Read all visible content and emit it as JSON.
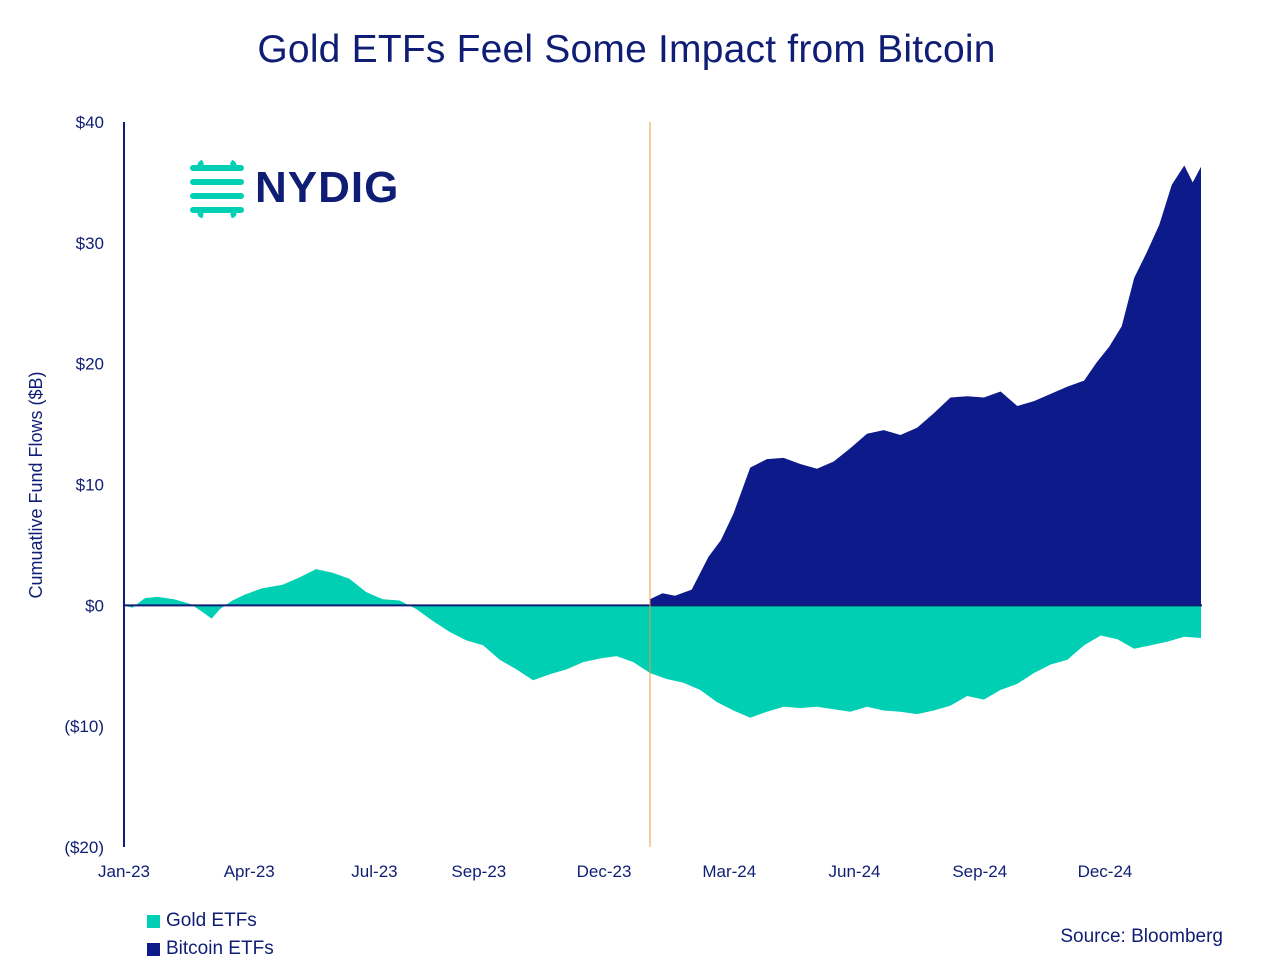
{
  "chart_data": {
    "type": "area",
    "title": "Gold ETFs Feel Some Impact from Bitcoin",
    "ylabel": "Cumuatlive Fund Flows ($B)",
    "xlabel": "",
    "ylim": [
      -20,
      40
    ],
    "y_ticks": [
      "$40",
      "$30",
      "$20",
      "$10",
      "$0",
      "($10)",
      "($20)"
    ],
    "y_tick_values": [
      40,
      30,
      20,
      10,
      0,
      -10,
      -20
    ],
    "x_ticks": [
      "Jan-23",
      "Apr-23",
      "Jul-23",
      "Sep-23",
      "Dec-23",
      "Mar-24",
      "Jun-24",
      "Sep-24",
      "Dec-24"
    ],
    "x_tick_months": [
      0,
      3,
      6,
      8.5,
      11.5,
      14.5,
      17.5,
      20.5,
      23.5
    ],
    "x_range_months": [
      0,
      25.8
    ],
    "bitcoin_launch_month": 12.6,
    "legend_placement": "bottom-left",
    "source": "Source: Bloomberg",
    "logo_text": "NYDIG",
    "series": [
      {
        "name": "Gold ETFs",
        "color": "#00cfb4",
        "x_months": [
          0,
          0.2,
          0.5,
          0.8,
          1.2,
          1.6,
          1.9,
          2.1,
          2.3,
          2.6,
          2.9,
          3.3,
          3.8,
          4.2,
          4.6,
          5.0,
          5.4,
          5.8,
          6.2,
          6.6,
          7.0,
          7.4,
          7.8,
          8.2,
          8.6,
          9.0,
          9.4,
          9.8,
          10.2,
          10.6,
          11.0,
          11.4,
          11.8,
          12.2,
          12.6,
          13.0,
          13.4,
          13.8,
          14.2,
          14.6,
          15.0,
          15.4,
          15.8,
          16.2,
          16.6,
          17.0,
          17.4,
          17.8,
          18.2,
          18.6,
          19.0,
          19.4,
          19.8,
          20.2,
          20.6,
          21.0,
          21.4,
          21.8,
          22.2,
          22.6,
          23.0,
          23.4,
          23.8,
          24.2,
          24.6,
          25.0,
          25.4,
          25.8
        ],
        "values": [
          0,
          -0.2,
          0.6,
          0.7,
          0.5,
          0.1,
          -0.6,
          -1.1,
          -0.3,
          0.4,
          0.9,
          1.4,
          1.7,
          2.3,
          3.0,
          2.7,
          2.2,
          1.1,
          0.5,
          0.4,
          -0.3,
          -1.3,
          -2.2,
          -2.9,
          -3.3,
          -4.5,
          -5.3,
          -6.2,
          -5.7,
          -5.3,
          -4.7,
          -4.4,
          -4.2,
          -4.7,
          -5.6,
          -6.1,
          -6.4,
          -7.0,
          -8.0,
          -8.7,
          -9.3,
          -8.8,
          -8.4,
          -8.5,
          -8.4,
          -8.6,
          -8.8,
          -8.4,
          -8.7,
          -8.8,
          -9.0,
          -8.7,
          -8.3,
          -7.5,
          -7.8,
          -7.0,
          -6.5,
          -5.6,
          -4.9,
          -4.5,
          -3.3,
          -2.5,
          -2.8,
          -3.6,
          -3.3,
          -3.0,
          -2.6,
          -2.7
        ]
      },
      {
        "name": "Bitcoin ETFs",
        "color": "#0c1a8a",
        "x_months": [
          12.6,
          12.9,
          13.2,
          13.6,
          14.0,
          14.3,
          14.6,
          15.0,
          15.4,
          15.8,
          16.2,
          16.6,
          17.0,
          17.4,
          17.8,
          18.2,
          18.6,
          19.0,
          19.4,
          19.8,
          20.2,
          20.6,
          21.0,
          21.4,
          21.8,
          22.2,
          22.6,
          23.0,
          23.3,
          23.6,
          23.9,
          24.2,
          24.5,
          24.8,
          25.1,
          25.4,
          25.6,
          25.8
        ],
        "values": [
          0.5,
          1.0,
          0.8,
          1.3,
          4.0,
          5.4,
          7.6,
          11.4,
          12.1,
          12.2,
          11.7,
          11.3,
          11.9,
          13.0,
          14.2,
          14.5,
          14.1,
          14.7,
          15.9,
          17.2,
          17.3,
          17.2,
          17.7,
          16.5,
          16.9,
          17.5,
          18.1,
          18.6,
          20.1,
          21.4,
          23.1,
          27.1,
          29.2,
          31.5,
          34.8,
          36.4,
          35.0,
          36.3
        ]
      }
    ]
  }
}
